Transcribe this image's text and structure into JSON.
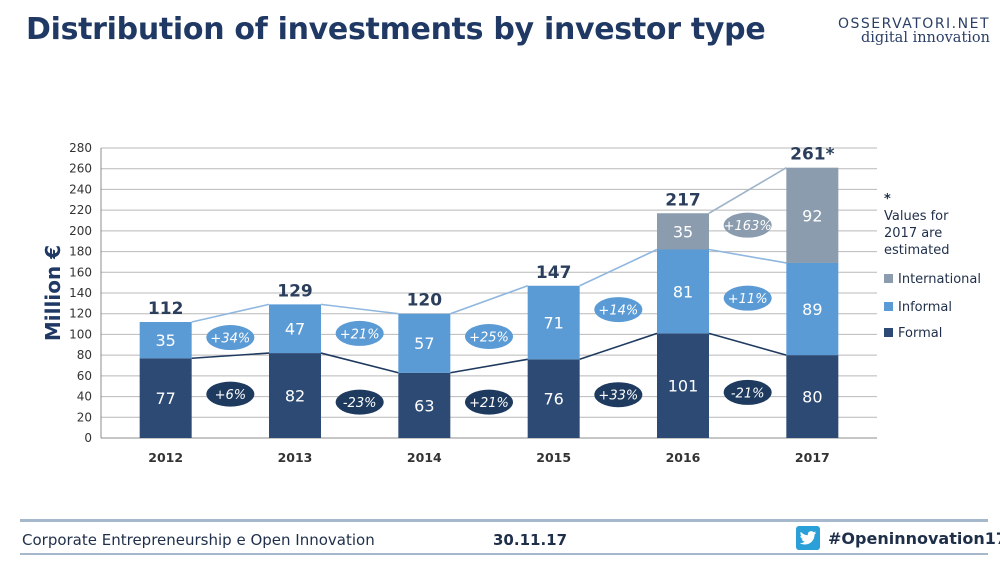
{
  "header": {
    "title": "Distribution of investments by investor type",
    "logo_line1": "OSSERVATORI.NET",
    "logo_line2": "digital innovation"
  },
  "footer": {
    "left": "Corporate Entrepreneurship e Open Innovation",
    "date": "30.11.17",
    "hashtag": "#Openinnovation17"
  },
  "colors": {
    "formal": "#2c4a73",
    "informal": "#5b9bd5",
    "international": "#8a9cae",
    "title": "#1f3864",
    "oval_dark": "#1e3a5f",
    "oval_light": "#5b9bd5"
  },
  "chart_data": {
    "type": "bar",
    "stacked": true,
    "ylabel": "Million €",
    "ylim": [
      0,
      280
    ],
    "yticks": [
      0,
      20,
      40,
      60,
      80,
      100,
      120,
      140,
      160,
      180,
      200,
      220,
      240,
      260,
      280
    ],
    "categories": [
      "2012",
      "2013",
      "2014",
      "2015",
      "2016",
      "2017"
    ],
    "series": [
      {
        "name": "Formal",
        "values": [
          77,
          82,
          63,
          76,
          101,
          80
        ],
        "labels": [
          "77",
          "82",
          "63",
          "76",
          "101",
          "80"
        ]
      },
      {
        "name": "Informal",
        "values": [
          35,
          47,
          57,
          71,
          81,
          89
        ],
        "labels": [
          "35",
          "47",
          "57",
          "71",
          "81",
          "89"
        ]
      },
      {
        "name": "International",
        "values": [
          0,
          0,
          0,
          0,
          35,
          92
        ],
        "labels": [
          "",
          "",
          "",
          "",
          "35",
          "92"
        ]
      }
    ],
    "totals": [
      "112",
      "129",
      "120",
      "147",
      "217",
      "261*"
    ],
    "growth_formal": [
      "+6%",
      "-23%",
      "+21%",
      "+33%",
      "-21%"
    ],
    "growth_informal": [
      "+34%",
      "+21%",
      "+25%",
      "+14%",
      "+11%"
    ],
    "growth_international": "+163%",
    "legend": [
      "International",
      "Informal",
      "Formal"
    ],
    "legend_position": "right",
    "note": "* Values for 2017 are estimated",
    "grid": true
  }
}
